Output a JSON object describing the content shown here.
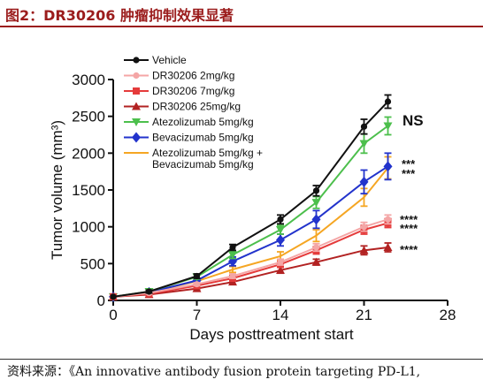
{
  "figure": {
    "title": "图2：DR30206 肿瘤抑制效果显著",
    "source": "资料来源：《An innovative antibody fusion protein targeting PD-L1,"
  },
  "chart_data": {
    "type": "line",
    "xlabel": "Days posttreatment start",
    "ylabel": "Tumor volume (mm³)",
    "xlim": [
      0,
      28
    ],
    "ylim": [
      0,
      3000
    ],
    "xticks": [
      "0",
      "7",
      "14",
      "21",
      "28"
    ],
    "yticks": [
      "0",
      "500",
      "1000",
      "1500",
      "2000",
      "2500",
      "3000"
    ],
    "x": [
      0,
      3,
      7,
      10,
      14,
      17,
      21,
      23
    ],
    "legend_position": "top-left",
    "series": [
      {
        "name": "Vehicle",
        "color": "#111111",
        "marker": "circle",
        "values": [
          50,
          120,
          330,
          720,
          1100,
          1490,
          2360,
          2700
        ],
        "errors": [
          0,
          20,
          30,
          40,
          60,
          70,
          100,
          90
        ]
      },
      {
        "name": "DR30206 2mg/kg",
        "color": "#f4a6a6",
        "marker": "circle",
        "values": [
          50,
          100,
          220,
          330,
          520,
          720,
          1000,
          1100
        ],
        "errors": [
          0,
          15,
          20,
          30,
          40,
          50,
          60,
          60
        ]
      },
      {
        "name": "DR30206 7mg/kg",
        "color": "#e53b3b",
        "marker": "square",
        "values": [
          50,
          90,
          200,
          300,
          490,
          680,
          960,
          1050
        ],
        "errors": [
          0,
          15,
          20,
          30,
          40,
          50,
          60,
          60
        ]
      },
      {
        "name": "DR30206 25mg/kg",
        "color": "#b22222",
        "marker": "triangle",
        "values": [
          50,
          80,
          160,
          250,
          410,
          520,
          680,
          720
        ],
        "errors": [
          0,
          15,
          20,
          30,
          40,
          40,
          60,
          60
        ]
      },
      {
        "name": "Atezolizumab 5mg/kg",
        "color": "#4cbf4c",
        "marker": "triangle-down",
        "values": [
          50,
          120,
          320,
          620,
          960,
          1330,
          2130,
          2370
        ],
        "errors": [
          0,
          20,
          30,
          50,
          60,
          80,
          130,
          120
        ]
      },
      {
        "name": "Bevacizumab 5mg/kg",
        "color": "#2233cc",
        "marker": "diamond",
        "values": [
          50,
          110,
          270,
          530,
          820,
          1100,
          1610,
          1820
        ],
        "errors": [
          0,
          20,
          30,
          60,
          80,
          120,
          160,
          180
        ]
      },
      {
        "name": "Atezolizumab 5mg/kg + Bevacizumab 5mg/kg",
        "color": "#f5a623",
        "marker": "none",
        "values": [
          50,
          110,
          260,
          420,
          600,
          880,
          1400,
          1800
        ],
        "errors": [
          0,
          20,
          30,
          40,
          60,
          80,
          120,
          150
        ]
      }
    ],
    "annotations": [
      {
        "text": "NS",
        "color": "#4cbf4c",
        "series": "Atezolizumab 5mg/kg"
      },
      {
        "text": "***",
        "color": "#f5a623",
        "series": "Atezolizumab 5mg/kg + Bevacizumab 5mg/kg"
      },
      {
        "text": "***",
        "color": "#2233cc",
        "series": "Bevacizumab 5mg/kg"
      },
      {
        "text": "****",
        "color": "#f4a6a6",
        "series": "DR30206 2mg/kg"
      },
      {
        "text": "****",
        "color": "#e53b3b",
        "series": "DR30206 7mg/kg"
      },
      {
        "text": "****",
        "color": "#b22222",
        "series": "DR30206 25mg/kg"
      }
    ]
  }
}
